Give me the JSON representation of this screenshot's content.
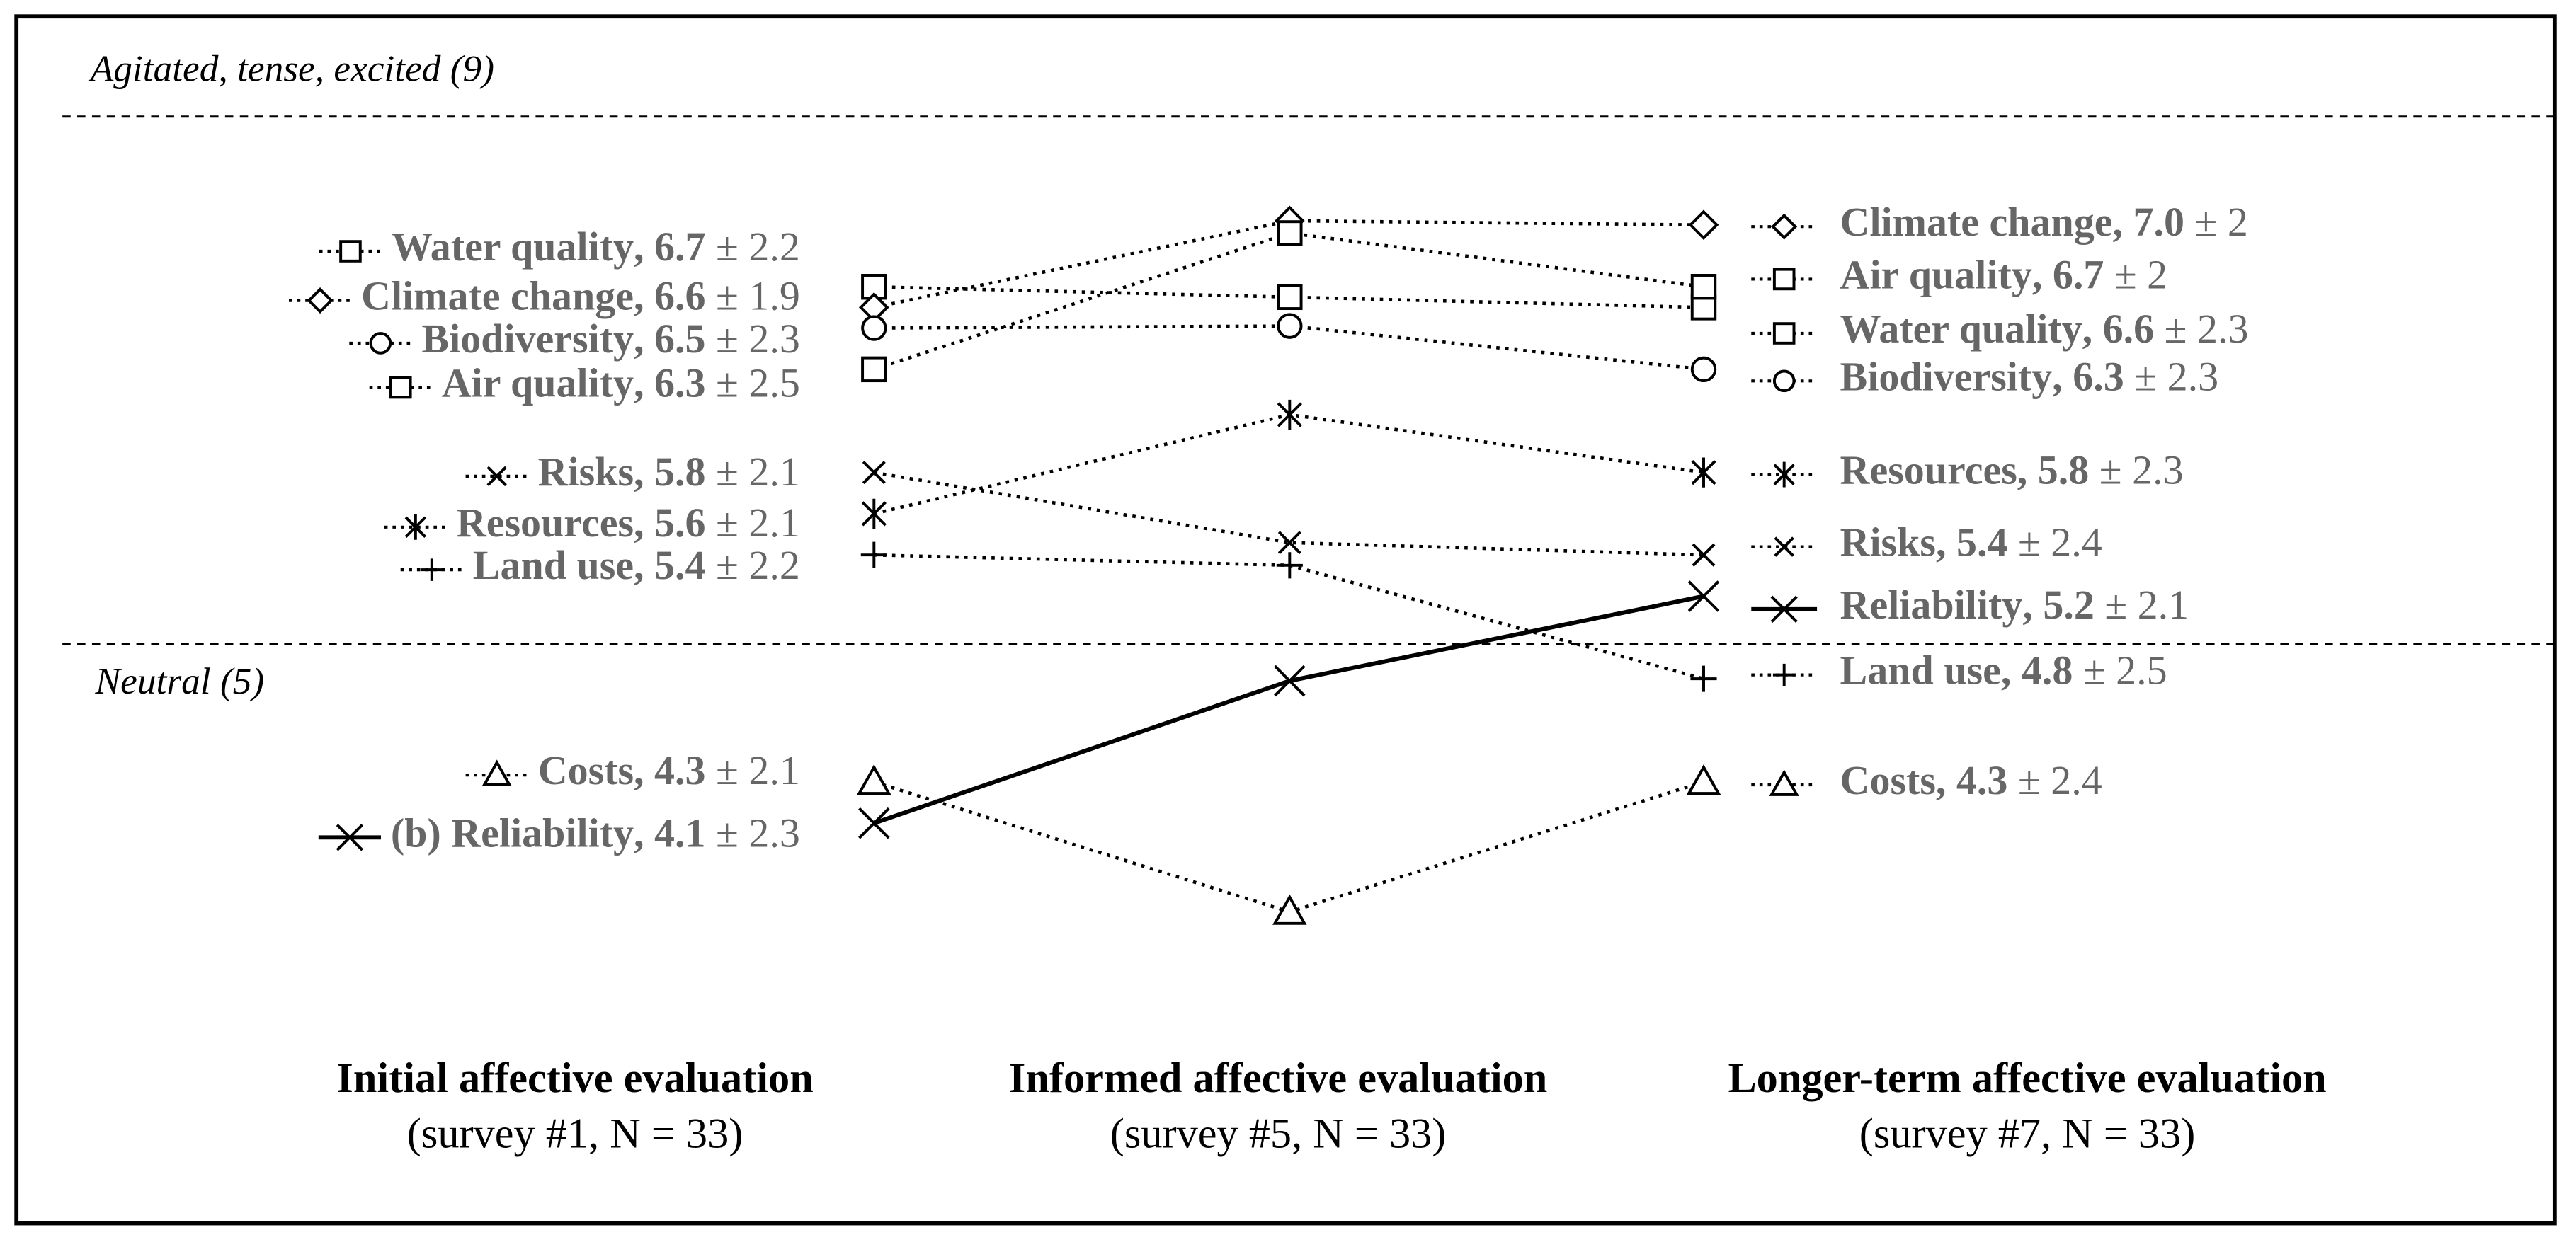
{
  "chart_data": {
    "type": "slope",
    "annotations": [
      "Agitated, tense, excited (9)",
      "Neutral (5)"
    ],
    "categories": [
      "Initial affective evaluation",
      "Informed affective evaluation",
      "Longer-term affective evaluation"
    ],
    "category_notes": [
      "(survey #1, N = 33)",
      "(survey #5, N = 33)",
      "(survey #7, N = 33)"
    ],
    "label_separator": ",",
    "error_sign": "±",
    "color": "#000000",
    "ylim": [
      2.07,
      8.09
    ],
    "series": [
      {
        "name": "Water quality",
        "marker": "square",
        "dash": "dotted",
        "values": [
          6.7,
          6.65,
          6.6
        ],
        "value_labels": [
          "6.7",
          null,
          "6.6"
        ],
        "errors": [
          2.2,
          null,
          2.3
        ]
      },
      {
        "name": "Climate change",
        "marker": "diamond",
        "dash": "dotted",
        "values": [
          6.6,
          7.02,
          7.0
        ],
        "value_labels": [
          "6.6",
          null,
          "7.0"
        ],
        "errors": [
          1.9,
          null,
          2
        ]
      },
      {
        "name": "Biodiversity",
        "marker": "circle",
        "dash": "dotted",
        "values": [
          6.5,
          6.51,
          6.3
        ],
        "value_labels": [
          "6.5",
          null,
          "6.3"
        ],
        "errors": [
          2.3,
          null,
          2.3
        ]
      },
      {
        "name": "Air quality",
        "marker": "square",
        "dash": "dotted",
        "values": [
          6.3,
          6.96,
          6.7
        ],
        "value_labels": [
          "6.3",
          null,
          "6.7"
        ],
        "errors": [
          2.5,
          null,
          2
        ]
      },
      {
        "name": "Risks",
        "marker": "x",
        "dash": "dotted",
        "values": [
          5.8,
          5.46,
          5.4
        ],
        "value_labels": [
          "5.8",
          null,
          "5.4"
        ],
        "errors": [
          2.1,
          null,
          2.4
        ]
      },
      {
        "name": "Resources",
        "marker": "asterisk",
        "dash": "dotted",
        "values": [
          5.6,
          6.08,
          5.8
        ],
        "value_labels": [
          "5.6",
          null,
          "5.8"
        ],
        "errors": [
          2.1,
          null,
          2.3
        ]
      },
      {
        "name": "Land use",
        "marker": "plus",
        "dash": "dotted",
        "values": [
          5.4,
          5.35,
          4.8
        ],
        "value_labels": [
          "5.4",
          null,
          "4.8"
        ],
        "errors": [
          2.2,
          null,
          2.5
        ]
      },
      {
        "name": "Costs",
        "marker": "triangle",
        "dash": "dotted",
        "values": [
          4.3,
          3.67,
          4.3
        ],
        "value_labels": [
          "4.3",
          null,
          "4.3"
        ],
        "errors": [
          2.1,
          null,
          2.4
        ]
      },
      {
        "name": "Reliability",
        "prefix": "(b)",
        "marker": "cross",
        "dash": "solid",
        "values": [
          4.1,
          4.79,
          5.2
        ],
        "value_labels": [
          "4.1",
          null,
          "5.2"
        ],
        "errors": [
          2.3,
          null,
          2.1
        ]
      }
    ]
  }
}
